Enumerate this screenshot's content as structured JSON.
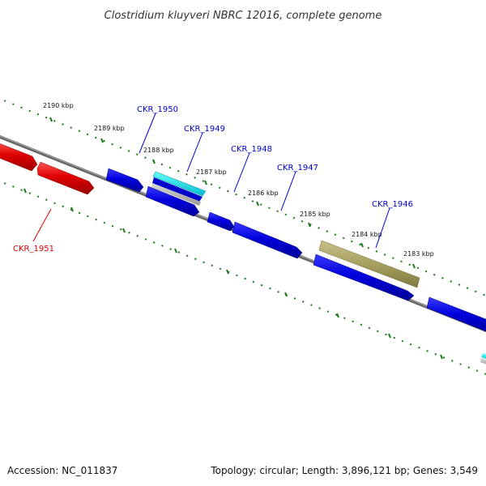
{
  "title": "Clostridium kluyveri NBRC 12016, complete genome",
  "footer": {
    "accession": "Accession: NC_011837",
    "topology": "Topology: circular; Length: 3,896,121 bp; Genes: 3,549"
  },
  "scale_ticks": [
    "2190 kbp",
    "2189 kbp",
    "2188 kbp",
    "2187 kbp",
    "2186 kbp",
    "2185 kbp",
    "2184 kbp",
    "2183 kbp"
  ],
  "genes": [
    {
      "id": "CKR_1951",
      "color": "#dd0000"
    },
    {
      "id": "CKR_1950",
      "color": "#0000cc"
    },
    {
      "id": "CKR_1949",
      "color": "#0000cc"
    },
    {
      "id": "CKR_1948",
      "color": "#0000cc"
    },
    {
      "id": "CKR_1947",
      "color": "#0000cc"
    },
    {
      "id": "CKR_1946",
      "color": "#0000cc"
    }
  ],
  "colors": {
    "backbone": "#777777",
    "tick": "#1a7a1a",
    "forward_gene": "#cc0000",
    "reverse_gene": "#0000dd",
    "rna_gene": "#00dddd",
    "pseudo_gene": "#a8a060"
  }
}
